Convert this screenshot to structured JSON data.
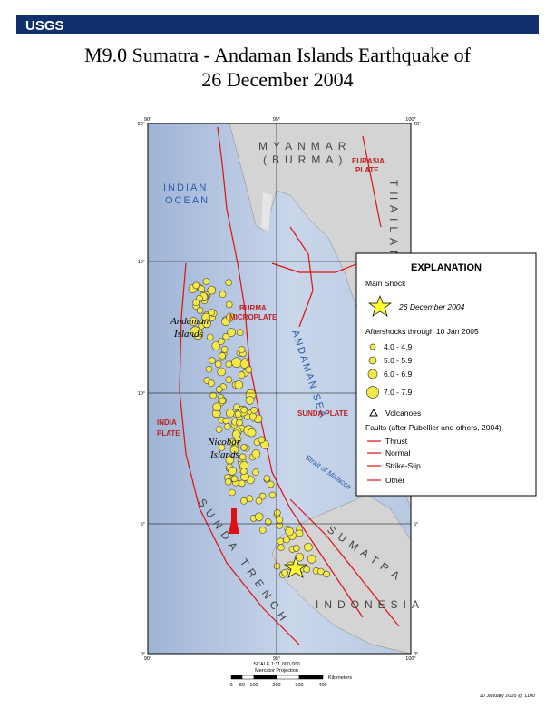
{
  "header": {
    "logo": "USGS",
    "title_line1": "M9.0 Sumatra -  Andaman Islands Earthquake of",
    "title_line2": "26 December 2004"
  },
  "map": {
    "longitudes": [
      "90°",
      "95°",
      "100°"
    ],
    "latitudes": [
      "20°",
      "15°",
      "10°",
      "5°",
      "0°"
    ],
    "labels": {
      "myanmar": "MYANMAR",
      "burma": "(BURMA)",
      "eurasia": "EURASIA",
      "eurasia_plate": "PLATE",
      "thailand": "THAILAND",
      "indian": "INDIAN",
      "ocean": "OCEAN",
      "burma_micro1": "BURMA",
      "burma_micro2": "MICROPLATE",
      "andaman1": "Andaman",
      "andaman2": "Islands",
      "andaman_sea": "ANDAMAN SEA",
      "sunda_plate": "SUNDA PLATE",
      "india1": "INDIA",
      "india2": "PLATE",
      "nicobar1": "Nicobar",
      "nicobar2": "Islands",
      "malacca": "Strait of Malacca",
      "sunda_trench": "SUNDA TRENCH",
      "sumatra": "SUMATRA",
      "indonesia": "INDONESIA"
    }
  },
  "legend": {
    "title": "EXPLANATION",
    "main_shock": "Main Shock",
    "main_shock_date": "26 December 2004",
    "aftershocks": "Aftershocks through 10 Jan 2005",
    "magnitudes": [
      "4.0 - 4.9",
      "5.0 - 5.9",
      "6.0 - 6.9",
      "7.0 - 7.9"
    ],
    "volcanoes": "Volcanoes",
    "faults": "Faults (after Pubellier and others, 2004)",
    "fault_types": [
      "Thrust",
      "Normal",
      "Strike-Slip",
      "Other"
    ]
  },
  "footer": {
    "scale": "SCALE 1:11,000,000",
    "projection": "Mercator Projection",
    "units": "Kilometers",
    "scale_ticks": [
      "0",
      "50",
      "100",
      "200",
      "300",
      "400"
    ],
    "date": "10 January 2005 @ 1100"
  }
}
